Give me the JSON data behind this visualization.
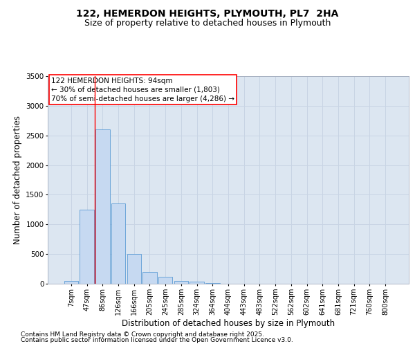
{
  "title": "122, HEMERDON HEIGHTS, PLYMOUTH, PL7  2HA",
  "subtitle": "Size of property relative to detached houses in Plymouth",
  "xlabel": "Distribution of detached houses by size in Plymouth",
  "ylabel": "Number of detached properties",
  "footnote1": "Contains HM Land Registry data © Crown copyright and database right 2025.",
  "footnote2": "Contains public sector information licensed under the Open Government Licence v3.0.",
  "annotation_line1": "122 HEMERDON HEIGHTS: 94sqm",
  "annotation_line2": "← 30% of detached houses are smaller (1,803)",
  "annotation_line3": "70% of semi-detached houses are larger (4,286) →",
  "categories": [
    "7sqm",
    "47sqm",
    "86sqm",
    "126sqm",
    "166sqm",
    "205sqm",
    "245sqm",
    "285sqm",
    "324sqm",
    "364sqm",
    "404sqm",
    "443sqm",
    "483sqm",
    "522sqm",
    "562sqm",
    "602sqm",
    "641sqm",
    "681sqm",
    "721sqm",
    "760sqm",
    "800sqm"
  ],
  "values": [
    50,
    1250,
    2600,
    1350,
    500,
    200,
    120,
    50,
    30,
    10,
    5,
    0,
    0,
    0,
    0,
    0,
    0,
    0,
    0,
    0,
    0
  ],
  "bar_color": "#c6d9f1",
  "bar_edge_color": "#5b9bd5",
  "grid_color": "#c8d4e4",
  "background_color": "#dce6f1",
  "redline_index": 1.5,
  "ylim": [
    0,
    3500
  ],
  "yticks": [
    0,
    500,
    1000,
    1500,
    2000,
    2500,
    3000,
    3500
  ]
}
